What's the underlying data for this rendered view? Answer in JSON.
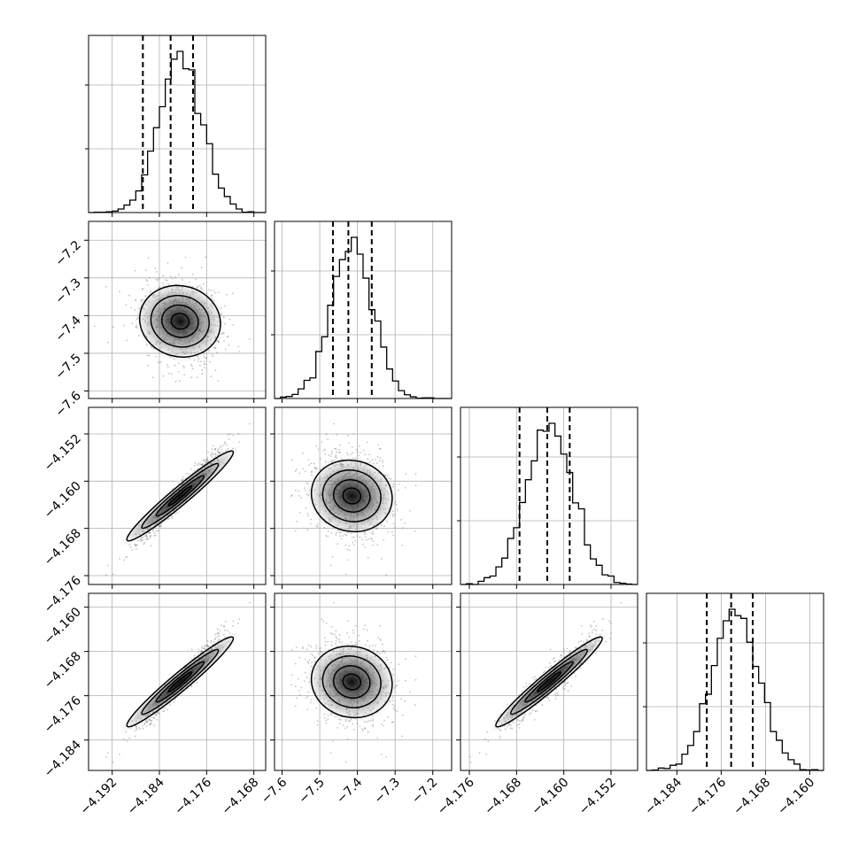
{
  "chart_data": {
    "type": "corner",
    "title": "",
    "parameters": [
      {
        "range": [
          -4.196,
          -4.166
        ],
        "mean": -4.1805,
        "std": 0.0036
      },
      {
        "range": [
          -7.62,
          -7.15
        ],
        "mean": -7.415,
        "std": 0.055
      },
      {
        "range": [
          -4.1775,
          -4.1475
        ],
        "mean": -4.1625,
        "std": 0.004
      },
      {
        "range": [
          -4.1895,
          -4.1575
        ],
        "mean": -4.1735,
        "std": 0.0042
      }
    ],
    "quantiles": [
      [
        -4.1868,
        -4.1821,
        -4.1783
      ],
      [
        -7.465,
        -7.424,
        -7.362
      ],
      [
        -4.1675,
        -4.1628,
        -4.159
      ],
      [
        -4.1786,
        -4.1742,
        -4.1703
      ]
    ],
    "x_ticks": [
      [
        "-4.192",
        "-4.184",
        "-4.176",
        "-4.168"
      ],
      [
        "-7.6",
        "-7.5",
        "-7.4",
        "-7.3",
        "-7.2"
      ],
      [
        "-4.176",
        "-4.168",
        "-4.160",
        "-4.152"
      ],
      [
        "-4.184",
        "-4.176",
        "-4.168",
        "-4.160"
      ]
    ],
    "x_tick_values": [
      [
        -4.192,
        -4.184,
        -4.176,
        -4.168
      ],
      [
        -7.6,
        -7.5,
        -7.4,
        -7.3,
        -7.2
      ],
      [
        -4.176,
        -4.168,
        -4.16,
        -4.152
      ],
      [
        -4.184,
        -4.176,
        -4.168,
        -4.16
      ]
    ],
    "y_ticks": [
      [],
      [
        "-7.2",
        "-7.3",
        "-7.4",
        "-7.5",
        "-7.6"
      ],
      [
        "-4.152",
        "-4.160",
        "-4.168",
        "-4.176"
      ],
      [
        "-4.160",
        "-4.168",
        "-4.176",
        "-4.184"
      ]
    ],
    "y_tick_values": [
      [],
      [
        -7.2,
        -7.3,
        -7.4,
        -7.5,
        -7.6
      ],
      [
        -4.152,
        -4.16,
        -4.168,
        -4.176
      ],
      [
        -4.16,
        -4.168,
        -4.176,
        -4.184
      ]
    ],
    "correlations": {
      "2-0": 0.97,
      "3-0": 0.97,
      "3-2": 0.97,
      "1-0": -0.1,
      "2-1": -0.2,
      "3-1": -0.2
    },
    "histogram_bins": 30,
    "grid": true
  }
}
